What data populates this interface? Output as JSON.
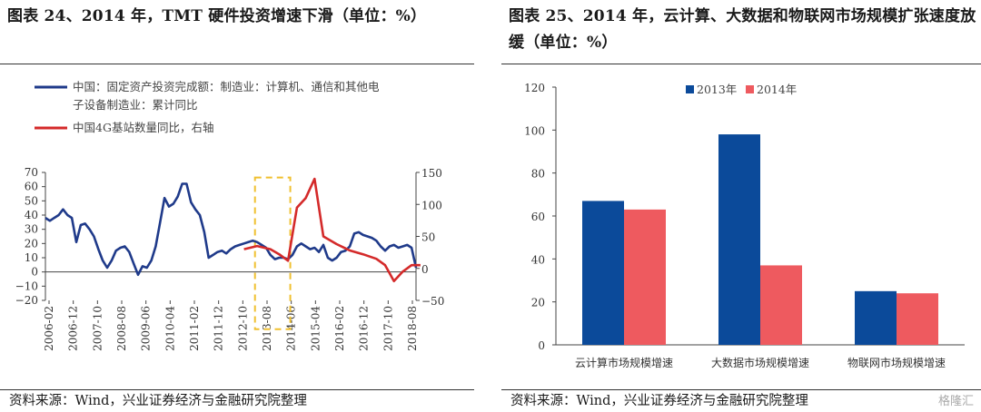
{
  "left": {
    "title": "图表 24、2014 年，TMT 硬件投资增速下滑（单位：%）",
    "source": "资料来源：Wind，兴业证券经济与金融研究院整理",
    "chart_data": {
      "type": "line",
      "left_y_ticks": [
        "70",
        "60",
        "50",
        "40",
        "30",
        "20",
        "10",
        "0",
        "−10",
        "−20"
      ],
      "right_y_ticks": [
        "150",
        "100",
        "50",
        "0",
        "−50"
      ],
      "x_ticks": [
        "2006-02",
        "2006-12",
        "2007-10",
        "2008-08",
        "2009-06",
        "2010-04",
        "2011-02",
        "2011-12",
        "2012-10",
        "2013-08",
        "2014-06",
        "2015-04",
        "2016-02",
        "2016-12",
        "2017-10",
        "2018-08"
      ],
      "left_ylim": [
        -20,
        70
      ],
      "right_ylim": [
        -50,
        150
      ],
      "series": [
        {
          "name": "中国：固定资产投资完成额：制造业：计算机、通信和其他电子设备制造业：累计同比",
          "legend_line1": "中国：固定资产投资完成额：制造业：计算机、通信和其他电",
          "legend_line2": "子设备制造业：累计同比",
          "axis": "left",
          "color": "#1f3a8a",
          "points": [
            [
              0,
              38
            ],
            [
              1,
              36
            ],
            [
              2,
              38
            ],
            [
              3,
              40
            ],
            [
              4,
              44
            ],
            [
              5,
              40
            ],
            [
              6,
              38
            ],
            [
              7,
              21
            ],
            [
              8,
              33
            ],
            [
              9,
              34
            ],
            [
              10,
              30
            ],
            [
              11,
              25
            ],
            [
              12,
              16
            ],
            [
              13,
              8
            ],
            [
              14,
              3
            ],
            [
              15,
              8
            ],
            [
              16,
              15
            ],
            [
              17,
              17
            ],
            [
              18,
              18
            ],
            [
              19,
              14
            ],
            [
              20,
              6
            ],
            [
              21,
              -2
            ],
            [
              22,
              4
            ],
            [
              23,
              3
            ],
            [
              24,
              8
            ],
            [
              25,
              18
            ],
            [
              26,
              35
            ],
            [
              27,
              52
            ],
            [
              28,
              46
            ],
            [
              29,
              48
            ],
            [
              30,
              53
            ],
            [
              31,
              62
            ],
            [
              32,
              62
            ],
            [
              33,
              49
            ],
            [
              34,
              44
            ],
            [
              35,
              40
            ],
            [
              36,
              28
            ],
            [
              37,
              10
            ],
            [
              38,
              12
            ],
            [
              39,
              14
            ],
            [
              40,
              15
            ],
            [
              41,
              13
            ],
            [
              42,
              16
            ],
            [
              43,
              18
            ],
            [
              44,
              19
            ],
            [
              45,
              20
            ],
            [
              46,
              21
            ],
            [
              47,
              22
            ],
            [
              48,
              21
            ],
            [
              49,
              19
            ],
            [
              50,
              17
            ],
            [
              51,
              12
            ],
            [
              52,
              9
            ],
            [
              53,
              10
            ],
            [
              54,
              10
            ],
            [
              55,
              9
            ],
            [
              56,
              12
            ],
            [
              57,
              18
            ],
            [
              58,
              20
            ],
            [
              59,
              18
            ],
            [
              60,
              16
            ],
            [
              61,
              17
            ],
            [
              62,
              14
            ],
            [
              63,
              19
            ],
            [
              64,
              10
            ],
            [
              65,
              8
            ],
            [
              66,
              10
            ],
            [
              67,
              14
            ],
            [
              68,
              15
            ],
            [
              69,
              18
            ],
            [
              70,
              27
            ],
            [
              71,
              28
            ],
            [
              72,
              26
            ],
            [
              73,
              25
            ],
            [
              74,
              24
            ],
            [
              75,
              22
            ],
            [
              76,
              18
            ],
            [
              77,
              15
            ],
            [
              78,
              18
            ],
            [
              79,
              19
            ],
            [
              80,
              17
            ],
            [
              81,
              18
            ],
            [
              82,
              19
            ],
            [
              83,
              17
            ],
            [
              84,
              3
            ]
          ],
          "point_count": 85
        },
        {
          "name": "中国4G基站数量同比，右轴",
          "axis": "right",
          "color": "#d42a2a",
          "points": [
            [
              45,
              30
            ],
            [
              48,
              35
            ],
            [
              51,
              30
            ],
            [
              53,
              22
            ],
            [
              55,
              12
            ],
            [
              57,
              95
            ],
            [
              59,
              110
            ],
            [
              61,
              140
            ],
            [
              63,
              50
            ],
            [
              66,
              38
            ],
            [
              69,
              28
            ],
            [
              72,
              22
            ],
            [
              75,
              15
            ],
            [
              77,
              5
            ],
            [
              79,
              -20
            ],
            [
              81,
              -5
            ],
            [
              83,
              5
            ],
            [
              85,
              5
            ]
          ]
        }
      ],
      "highlight_box": {
        "x_from": 47.5,
        "x_to": 55.5,
        "y_top": 142,
        "y_bottom": -95,
        "color": "#f0c030"
      }
    }
  },
  "right": {
    "title": "图表 25、2014 年，云计算、大数据和物联网市场规模扩张速度放缓（单位：%）",
    "source": "资料来源：Wind，兴业证券经济与金融研究院整理",
    "chart_data": {
      "type": "bar",
      "categories": [
        "云计算市场规模增速",
        "大数据市场规模增速",
        "物联网市场规模增速"
      ],
      "series": [
        {
          "name": "2013年",
          "color": "#0b4a9a",
          "values": [
            67,
            98,
            25
          ]
        },
        {
          "name": "2014年",
          "color": "#ee5a5f",
          "values": [
            63,
            37,
            24
          ]
        }
      ],
      "ylim": [
        0,
        120
      ],
      "y_ticks": [
        "120",
        "100",
        "80",
        "60",
        "40",
        "20",
        "0"
      ]
    }
  },
  "watermark": "格隆汇"
}
